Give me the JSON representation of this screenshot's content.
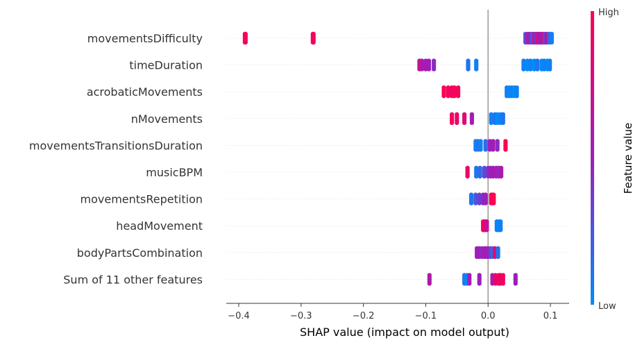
{
  "chart_data": {
    "type": "scatter",
    "subtype": "shap-beeswarm",
    "xlabel": "SHAP value (impact on model output)",
    "xlim": [
      -0.42,
      0.13
    ],
    "xticks": [
      -0.4,
      -0.3,
      -0.2,
      -0.1,
      0.0,
      0.1
    ],
    "xtick_labels": [
      "−0.4",
      "−0.3",
      "−0.2",
      "−0.1",
      "0.0",
      "0.1"
    ],
    "zero_line": true,
    "grid": false,
    "colorbar": {
      "title": "Feature value",
      "high_label": "High",
      "low_label": "Low",
      "high_color": "#ff0052",
      "mid_color": "#9b1fbd",
      "low_color": "#008bfb"
    },
    "features": [
      {
        "name": "movementsDifficulty",
        "points": [
          {
            "x": -0.39,
            "v": 1.0
          },
          {
            "x": -0.389,
            "v": 0.95
          },
          {
            "x": -0.28,
            "v": 1.0
          },
          {
            "x": -0.281,
            "v": 0.95
          },
          {
            "x": 0.06,
            "v": 0.3
          },
          {
            "x": 0.064,
            "v": 0.6
          },
          {
            "x": 0.068,
            "v": 0.5
          },
          {
            "x": 0.071,
            "v": 0.2
          },
          {
            "x": 0.074,
            "v": 0.7
          },
          {
            "x": 0.077,
            "v": 0.4
          },
          {
            "x": 0.08,
            "v": 0.8
          },
          {
            "x": 0.082,
            "v": 0.6
          },
          {
            "x": 0.085,
            "v": 0.5
          },
          {
            "x": 0.088,
            "v": 0.75
          },
          {
            "x": 0.091,
            "v": 0.3
          },
          {
            "x": 0.094,
            "v": 0.6
          },
          {
            "x": 0.098,
            "v": 0.2
          },
          {
            "x": 0.102,
            "v": 0.05
          }
        ]
      },
      {
        "name": "timeDuration",
        "points": [
          {
            "x": -0.11,
            "v": 0.7
          },
          {
            "x": -0.106,
            "v": 0.6
          },
          {
            "x": -0.1,
            "v": 0.55
          },
          {
            "x": -0.095,
            "v": 0.5
          },
          {
            "x": -0.087,
            "v": 0.45
          },
          {
            "x": -0.032,
            "v": 0.1
          },
          {
            "x": -0.019,
            "v": 0.05
          },
          {
            "x": 0.057,
            "v": 0.05
          },
          {
            "x": 0.063,
            "v": 0.0
          },
          {
            "x": 0.068,
            "v": 0.05
          },
          {
            "x": 0.074,
            "v": 0.0
          },
          {
            "x": 0.079,
            "v": 0.1
          },
          {
            "x": 0.086,
            "v": 0.0
          },
          {
            "x": 0.09,
            "v": 0.05
          },
          {
            "x": 0.095,
            "v": 0.0
          },
          {
            "x": 0.099,
            "v": 0.05
          }
        ]
      },
      {
        "name": "acrobaticMovements",
        "points": [
          {
            "x": -0.071,
            "v": 1.0
          },
          {
            "x": -0.064,
            "v": 0.95
          },
          {
            "x": -0.058,
            "v": 0.9
          },
          {
            "x": -0.054,
            "v": 1.0
          },
          {
            "x": -0.048,
            "v": 0.95
          },
          {
            "x": 0.03,
            "v": 0.05
          },
          {
            "x": 0.034,
            "v": 0.0
          },
          {
            "x": 0.038,
            "v": 0.05
          },
          {
            "x": 0.042,
            "v": 0.0
          },
          {
            "x": 0.046,
            "v": 0.05
          }
        ]
      },
      {
        "name": "nMovements",
        "points": [
          {
            "x": -0.058,
            "v": 0.95
          },
          {
            "x": -0.05,
            "v": 0.9
          },
          {
            "x": -0.038,
            "v": 0.85
          },
          {
            "x": -0.026,
            "v": 0.55
          },
          {
            "x": 0.005,
            "v": 0.05
          },
          {
            "x": 0.011,
            "v": 0.1
          },
          {
            "x": 0.015,
            "v": 0.0
          },
          {
            "x": 0.02,
            "v": 0.05
          },
          {
            "x": 0.024,
            "v": 0.1
          }
        ]
      },
      {
        "name": "movementsTransitionsDuration",
        "points": [
          {
            "x": -0.02,
            "v": 0.05
          },
          {
            "x": -0.016,
            "v": 0.1
          },
          {
            "x": -0.012,
            "v": 0.05
          },
          {
            "x": -0.004,
            "v": 0.15
          },
          {
            "x": 0.003,
            "v": 0.5
          },
          {
            "x": 0.008,
            "v": 0.55
          },
          {
            "x": 0.015,
            "v": 0.45
          },
          {
            "x": 0.028,
            "v": 1.0
          }
        ]
      },
      {
        "name": "musicBPM",
        "points": [
          {
            "x": -0.033,
            "v": 0.9
          },
          {
            "x": -0.019,
            "v": 0.1
          },
          {
            "x": -0.013,
            "v": 0.15
          },
          {
            "x": -0.006,
            "v": 0.3
          },
          {
            "x": 0.0,
            "v": 0.4
          },
          {
            "x": 0.004,
            "v": 0.55
          },
          {
            "x": 0.008,
            "v": 0.5
          },
          {
            "x": 0.013,
            "v": 0.6
          },
          {
            "x": 0.017,
            "v": 0.45
          },
          {
            "x": 0.021,
            "v": 0.6
          }
        ]
      },
      {
        "name": "movementsRepetition",
        "points": [
          {
            "x": -0.027,
            "v": 0.1
          },
          {
            "x": -0.02,
            "v": 0.25
          },
          {
            "x": -0.014,
            "v": 0.35
          },
          {
            "x": -0.008,
            "v": 0.45
          },
          {
            "x": -0.004,
            "v": 0.5
          },
          {
            "x": 0.005,
            "v": 1.0
          },
          {
            "x": 0.007,
            "v": 0.95
          },
          {
            "x": 0.009,
            "v": 1.0
          }
        ]
      },
      {
        "name": "headMovement",
        "points": [
          {
            "x": -0.008,
            "v": 0.9
          },
          {
            "x": -0.006,
            "v": 1.0
          },
          {
            "x": -0.004,
            "v": 0.8
          },
          {
            "x": -0.002,
            "v": 0.7
          },
          {
            "x": 0.014,
            "v": 0.05
          },
          {
            "x": 0.017,
            "v": 0.0
          },
          {
            "x": 0.02,
            "v": 0.05
          }
        ]
      },
      {
        "name": "bodyPartsCombination",
        "points": [
          {
            "x": -0.018,
            "v": 0.55
          },
          {
            "x": -0.014,
            "v": 0.5
          },
          {
            "x": -0.01,
            "v": 0.45
          },
          {
            "x": -0.006,
            "v": 0.6
          },
          {
            "x": -0.003,
            "v": 0.5
          },
          {
            "x": 0.0,
            "v": 0.55
          },
          {
            "x": 0.004,
            "v": 0.35
          },
          {
            "x": 0.007,
            "v": 0.15
          },
          {
            "x": 0.011,
            "v": 0.9
          },
          {
            "x": 0.016,
            "v": 0.1
          }
        ]
      },
      {
        "name": "Sum of 11 other features",
        "points": [
          {
            "x": -0.094,
            "v": 0.6
          },
          {
            "x": -0.038,
            "v": 0.1
          },
          {
            "x": -0.034,
            "v": 0.0
          },
          {
            "x": -0.03,
            "v": 0.55
          },
          {
            "x": -0.014,
            "v": 0.5
          },
          {
            "x": 0.007,
            "v": 0.6
          },
          {
            "x": 0.012,
            "v": 0.85
          },
          {
            "x": 0.017,
            "v": 1.0
          },
          {
            "x": 0.02,
            "v": 0.9
          },
          {
            "x": 0.024,
            "v": 0.95
          },
          {
            "x": 0.044,
            "v": 0.5
          }
        ]
      }
    ]
  }
}
